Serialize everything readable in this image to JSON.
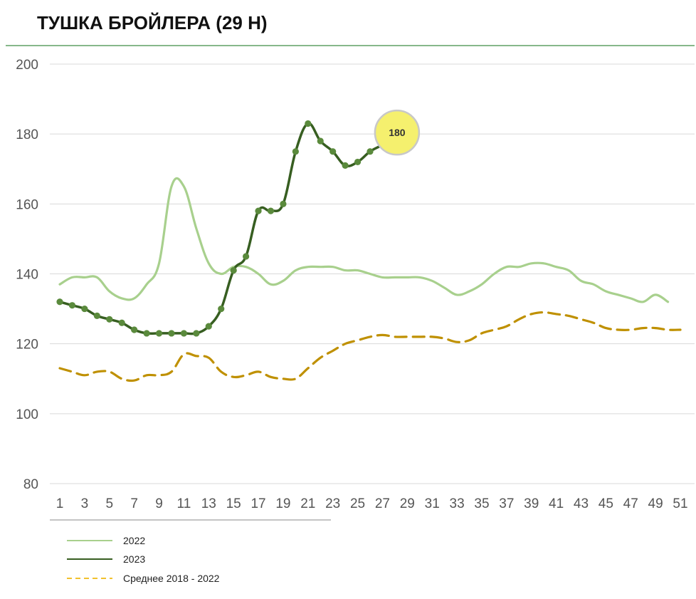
{
  "chart_data": {
    "type": "line",
    "title": "ТУШКА БРОЙЛЕРА (29 Н)",
    "ylim": [
      80,
      200
    ],
    "yticks": [
      80,
      100,
      120,
      140,
      160,
      180,
      200
    ],
    "xlim": [
      1,
      51
    ],
    "xticks": [
      1,
      3,
      5,
      7,
      9,
      11,
      13,
      15,
      17,
      19,
      21,
      23,
      25,
      27,
      29,
      31,
      33,
      35,
      37,
      39,
      41,
      43,
      45,
      47,
      49,
      51
    ],
    "grid": "horizontal",
    "legend_position": "bottom-left",
    "series": [
      {
        "name": "2022",
        "color": "#a8d08d",
        "style": "solid",
        "markers": false,
        "x": [
          1,
          2,
          3,
          4,
          5,
          6,
          7,
          8,
          9,
          10,
          11,
          12,
          13,
          14,
          15,
          16,
          17,
          18,
          19,
          20,
          21,
          22,
          23,
          24,
          25,
          26,
          27,
          28,
          29,
          30,
          31,
          32,
          33,
          34,
          35,
          36,
          37,
          38,
          39,
          40,
          41,
          42,
          43,
          44,
          45,
          46,
          47,
          48,
          49,
          50
        ],
        "values": [
          137,
          139,
          139,
          139,
          135,
          133,
          133,
          137,
          143,
          165,
          165,
          153,
          143,
          140,
          142,
          142,
          140,
          137,
          138,
          141,
          142,
          142,
          142,
          141,
          141,
          140,
          139,
          139,
          139,
          139,
          138,
          136,
          134,
          135,
          137,
          140,
          142,
          142,
          143,
          143,
          142,
          141,
          138,
          137,
          135,
          134,
          133,
          132,
          134,
          132
        ]
      },
      {
        "name": "2023",
        "color": "#375e21",
        "marker_color": "#5a8a3c",
        "style": "solid",
        "markers": true,
        "x": [
          1,
          2,
          3,
          4,
          5,
          6,
          7,
          8,
          9,
          10,
          11,
          12,
          13,
          14,
          15,
          16,
          17,
          18,
          19,
          20,
          21,
          22,
          23,
          24,
          25,
          26,
          27,
          28
        ],
        "values": [
          132,
          131,
          130,
          128,
          127,
          126,
          124,
          123,
          123,
          123,
          123,
          123,
          125,
          130,
          141,
          145,
          158,
          158,
          160,
          175,
          183,
          178,
          175,
          171,
          172,
          175,
          177,
          180
        ]
      },
      {
        "name": "Среднее 2018 - 2022",
        "color": "#bf9000",
        "style": "dashed",
        "markers": false,
        "x": [
          1,
          2,
          3,
          4,
          5,
          6,
          7,
          8,
          9,
          10,
          11,
          12,
          13,
          14,
          15,
          16,
          17,
          18,
          19,
          20,
          21,
          22,
          23,
          24,
          25,
          26,
          27,
          28,
          29,
          30,
          31,
          32,
          33,
          34,
          35,
          36,
          37,
          38,
          39,
          40,
          41,
          42,
          43,
          44,
          45,
          46,
          47,
          48,
          49,
          50,
          51
        ],
        "values": [
          113,
          112,
          111,
          112,
          112,
          110,
          109.5,
          111,
          111,
          112,
          117,
          116.5,
          116,
          112,
          110.5,
          111,
          112,
          110.5,
          110,
          110,
          113,
          116,
          118,
          120,
          121,
          122,
          122.5,
          122,
          122,
          122,
          122,
          121.5,
          120.5,
          121,
          123,
          124,
          125,
          127,
          128.5,
          129,
          128.5,
          128,
          127,
          126,
          124.5,
          124,
          124,
          124.5,
          124.5,
          124,
          124
        ]
      }
    ],
    "callout": {
      "label": "180",
      "x": 28,
      "y": 180,
      "fill": "#f5f06e",
      "stroke": "#c8c8c8"
    },
    "legend": [
      {
        "label": "2022",
        "color": "#a8d08d",
        "style": "solid"
      },
      {
        "label": "2023",
        "color": "#375e21",
        "style": "solid"
      },
      {
        "label": "Среднее 2018 - 2022",
        "color": "#f2c12e",
        "style": "dashed"
      }
    ],
    "colors": {
      "title_rule": "#5e9f63",
      "grid": "#d9d9d9",
      "tick_label": "#555555",
      "x_axis_rule": "#888888"
    }
  }
}
